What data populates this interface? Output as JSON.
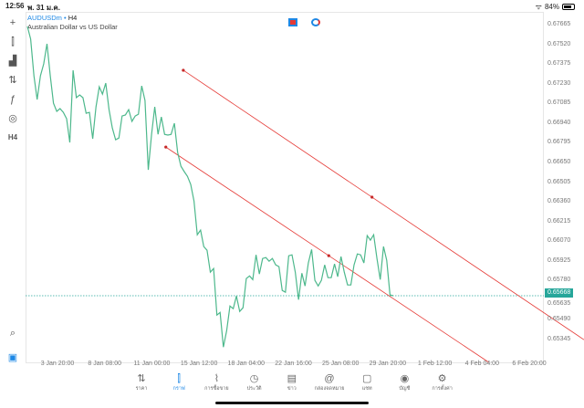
{
  "status_bar": {
    "time": "12:56",
    "date": "พ. 31 ม.ค.",
    "battery": "84%",
    "battery_level": 84
  },
  "symbol": {
    "name": "AUDUSDm",
    "timeframe": "H4",
    "separator": "•",
    "description": "Australian Dollar vs US Dollar"
  },
  "toolbar": {
    "items": [
      {
        "icon": "crosshair-icon",
        "glyph": "+"
      },
      {
        "icon": "candlestick-icon",
        "glyph": "⫿"
      },
      {
        "icon": "indicators-icon",
        "glyph": "▟"
      },
      {
        "icon": "objects-icon",
        "glyph": "⇅"
      },
      {
        "icon": "function-icon",
        "glyph": "ƒ"
      },
      {
        "icon": "shapes-icon",
        "glyph": "◎"
      },
      {
        "icon": "timeframe-icon",
        "glyph": "H4"
      }
    ],
    "bottom": [
      {
        "icon": "zoom-icon",
        "glyph": "⌕"
      },
      {
        "icon": "trade-icon",
        "glyph": "▣"
      }
    ]
  },
  "colors": {
    "line": "#4db88c",
    "trendline": "#e53935",
    "current": "#26a69a",
    "accent": "#1e88e5"
  },
  "chart_data": {
    "type": "line",
    "price_axis": [
      "0.67665",
      "0.67520",
      "0.67375",
      "0.67230",
      "0.67085",
      "0.66940",
      "0.66795",
      "0.66650",
      "0.66505",
      "0.66360",
      "0.66215",
      "0.66070",
      "0.65925",
      "0.65780",
      "0.65635",
      "0.65490",
      "0.65345"
    ],
    "ylim": [
      0.65345,
      0.67665
    ],
    "time_axis": [
      "3 Jan 20:00",
      "8 Jan 08:00",
      "11 Jan 00:00",
      "15 Jan 12:00",
      "18 Jan 04:00",
      "22 Jan 16:00",
      "25 Jan 08:00",
      "29 Jan 20:00",
      "1 Feb 12:00",
      "4 Feb 04:00",
      "6 Feb 20:00"
    ],
    "current_price": "0.65668",
    "values": [
      0.67652,
      0.67558,
      0.67288,
      0.67113,
      0.67288,
      0.67376,
      0.67524,
      0.67288,
      0.67086,
      0.67026,
      0.67046,
      0.67019,
      0.66972,
      0.66797,
      0.67329,
      0.67127,
      0.67147,
      0.67127,
      0.67012,
      0.67019,
      0.66824,
      0.67059,
      0.67207,
      0.67153,
      0.67234,
      0.67039,
      0.66904,
      0.66817,
      0.6683,
      0.66992,
      0.66999,
      0.67039,
      0.66952,
      0.66992,
      0.67005,
      0.67214,
      0.67106,
      0.66595,
      0.66857,
      0.67059,
      0.66857,
      0.66985,
      0.66857,
      0.66851,
      0.66857,
      0.66938,
      0.66723,
      0.66622,
      0.66582,
      0.66548,
      0.66488,
      0.66366,
      0.66117,
      0.66151,
      0.6603,
      0.66003,
      0.65841,
      0.65868,
      0.65525,
      0.65545,
      0.65289,
      0.6541,
      0.65592,
      0.65572,
      0.65666,
      0.65552,
      0.65579,
      0.65794,
      0.65814,
      0.65787,
      0.65969,
      0.65828,
      0.65942,
      0.65949,
      0.65922,
      0.65942,
      0.65895,
      0.65882,
      0.65707,
      0.65693,
      0.65962,
      0.65969,
      0.65841,
      0.65639,
      0.65834,
      0.6574,
      0.65909,
      0.66009,
      0.65781,
      0.6574,
      0.65781,
      0.65895,
      0.65801,
      0.65801,
      0.65902,
      0.65808,
      0.65956,
      0.65841,
      0.65747,
      0.65747,
      0.65895,
      0.65976,
      0.65969,
      0.65909,
      0.66111,
      0.66077,
      0.66117,
      0.65942,
      0.65787,
      0.6603,
      0.65929,
      0.65674,
      0.65668
    ],
    "trendlines": [
      {
        "p1": {
          "time": "14 Jan 00:00",
          "price": 0.67329
        },
        "p2": {
          "time": "28 Jan 08:00",
          "price": 0.66394
        }
      },
      {
        "p1": {
          "time": "12 Jan 08:00",
          "price": 0.66763
        },
        "p2": {
          "time": "24 Jan 16:00",
          "price": 0.65963
        }
      }
    ],
    "grid": false
  },
  "tabs": [
    {
      "label": "ราคา",
      "icon": "quotes-icon",
      "glyph": "⇅"
    },
    {
      "label": "กราฟ",
      "icon": "chart-icon",
      "glyph": "⫿",
      "active": true
    },
    {
      "label": "การซื้อขาย",
      "icon": "trade-icon",
      "glyph": "⌇"
    },
    {
      "label": "ประวัติ",
      "icon": "history-icon",
      "glyph": "◷"
    },
    {
      "label": "ข่าว",
      "icon": "news-icon",
      "glyph": "▤"
    },
    {
      "label": "กล่องจดหมาย",
      "icon": "mail-icon",
      "glyph": "@"
    },
    {
      "label": "แชท",
      "icon": "chat-icon",
      "glyph": "▢"
    },
    {
      "label": "บัญชี",
      "icon": "account-icon",
      "glyph": "◉"
    },
    {
      "label": "การตั้งค่า",
      "icon": "settings-icon",
      "glyph": "⚙"
    }
  ]
}
